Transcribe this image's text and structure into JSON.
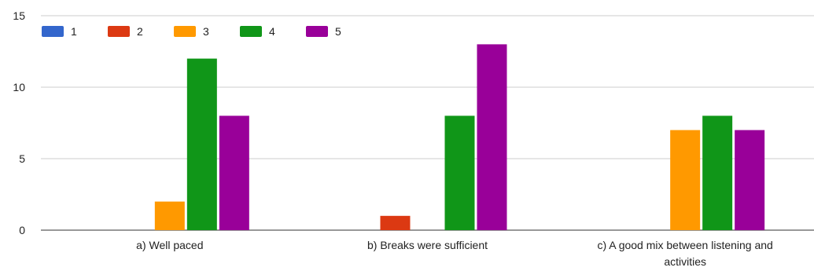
{
  "chart_data": {
    "type": "bar",
    "title": "",
    "xlabel": "",
    "ylabel": "",
    "ylim": [
      0,
      15
    ],
    "yticks": [
      0,
      5,
      10,
      15
    ],
    "grid": true,
    "legend_position": "top-left",
    "categories": [
      [
        "a) Well paced"
      ],
      [
        "b) Breaks were sufficient"
      ],
      [
        "c) A good mix between listening and",
        "activities"
      ]
    ],
    "series": [
      {
        "name": "1",
        "color": "#3366cc",
        "values": [
          0,
          0,
          0
        ]
      },
      {
        "name": "2",
        "color": "#dc3912",
        "values": [
          0,
          1,
          0
        ]
      },
      {
        "name": "3",
        "color": "#ff9900",
        "values": [
          2,
          0,
          7
        ]
      },
      {
        "name": "4",
        "color": "#109618",
        "values": [
          12,
          8,
          8
        ]
      },
      {
        "name": "5",
        "color": "#990099",
        "values": [
          8,
          13,
          7
        ]
      }
    ]
  }
}
